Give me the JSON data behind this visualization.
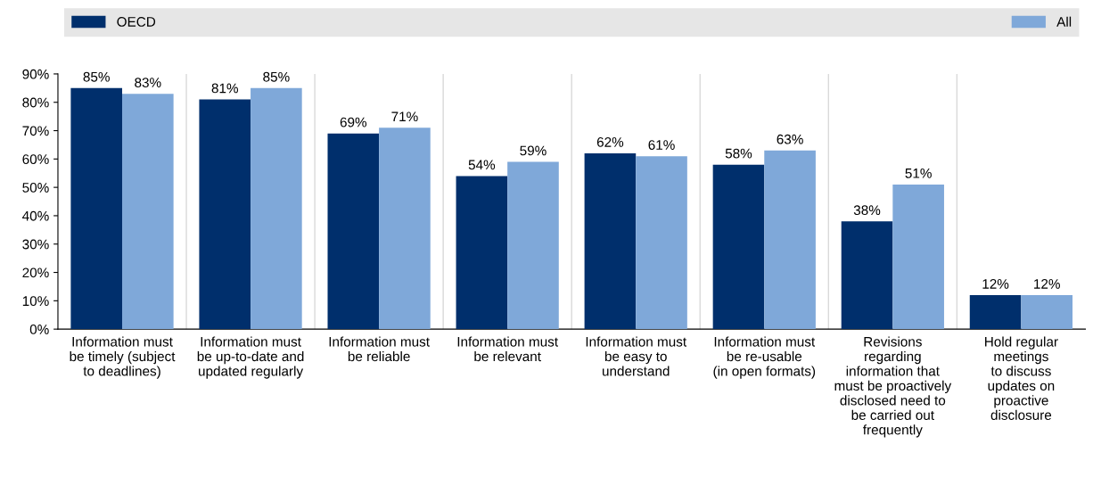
{
  "chart_data": {
    "type": "bar",
    "categories": [
      "Information must\nbe timely (subject\nto deadlines)",
      "Information must\nbe up-to-date and\nupdated regularly",
      "Information must\nbe reliable",
      "Information must\nbe relevant",
      "Information must\nbe easy to\nunderstand",
      "Information must\nbe re-usable\n(in open formats)",
      "Revisions\nregarding\ninformation that\nmust be proactively\ndisclosed need to\nbe carried out\nfrequently",
      "Hold regular\nmeetings\nto discuss\nupdates on\nproactive\ndisclosure"
    ],
    "series": [
      {
        "name": "OECD",
        "color": "#002f6c",
        "values": [
          85,
          81,
          69,
          54,
          62,
          58,
          38,
          12
        ],
        "value_labels": [
          "85%",
          "81%",
          "69%",
          "54%",
          "62%",
          "58%",
          "38%",
          "12%"
        ]
      },
      {
        "name": "All",
        "color": "#7fa8d9",
        "values": [
          83,
          85,
          71,
          59,
          61,
          63,
          51,
          12
        ],
        "value_labels": [
          "83%",
          "85%",
          "71%",
          "59%",
          "61%",
          "63%",
          "51%",
          "12%"
        ]
      }
    ],
    "ylim": [
      0,
      90
    ],
    "yticks": [
      {
        "value": 0,
        "label": "0%"
      },
      {
        "value": 10,
        "label": "10%"
      },
      {
        "value": 20,
        "label": "20%"
      },
      {
        "value": 30,
        "label": "30%"
      },
      {
        "value": 40,
        "label": "40%"
      },
      {
        "value": 50,
        "label": "50%"
      },
      {
        "value": 60,
        "label": "60%"
      },
      {
        "value": 70,
        "label": "70%"
      },
      {
        "value": 80,
        "label": "80%"
      },
      {
        "value": 90,
        "label": "90%"
      }
    ],
    "grid": "x",
    "legend": "top"
  }
}
